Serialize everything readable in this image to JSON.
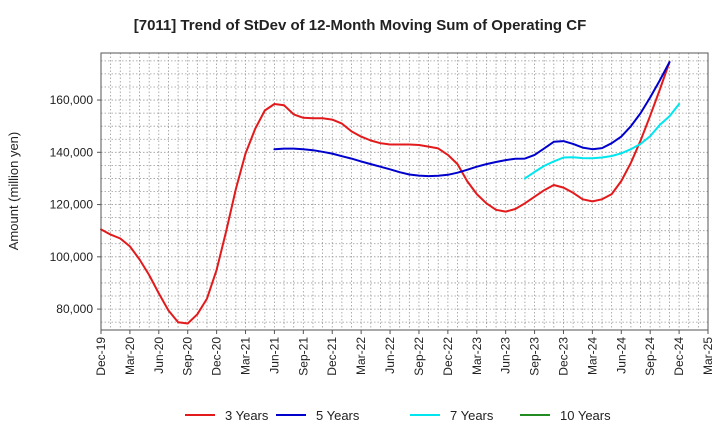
{
  "chart_data": {
    "type": "line",
    "title": "[7011]  Trend of StDev of 12-Month Moving Sum of Operating CF",
    "xlabel": "",
    "ylabel": "Amount (million yen)",
    "ylim": [
      72000,
      178000
    ],
    "yticks": [
      80000,
      100000,
      120000,
      140000,
      160000
    ],
    "ytick_labels": [
      "80,000",
      "100,000",
      "120,000",
      "140,000",
      "160,000"
    ],
    "x_categories": [
      "Dec-19",
      "Mar-20",
      "Jun-20",
      "Sep-20",
      "Dec-20",
      "Mar-21",
      "Jun-21",
      "Sep-21",
      "Dec-21",
      "Mar-22",
      "Jun-22",
      "Sep-22",
      "Dec-22",
      "Mar-23",
      "Jun-23",
      "Sep-23",
      "Dec-23",
      "Mar-24",
      "Jun-24",
      "Sep-24",
      "Dec-24",
      "Mar-25"
    ],
    "grid": true,
    "legend_position": "bottom",
    "series": [
      {
        "name": "3 Years",
        "color": "#e31a1c",
        "points": [
          [
            0,
            110500
          ],
          [
            1,
            108500
          ],
          [
            2,
            107000
          ],
          [
            3,
            104000
          ],
          [
            4,
            99000
          ],
          [
            5,
            93000
          ],
          [
            6,
            86000
          ],
          [
            7,
            79500
          ],
          [
            8,
            75000
          ],
          [
            9,
            74500
          ],
          [
            10,
            78000
          ],
          [
            11,
            84000
          ],
          [
            12,
            95000
          ],
          [
            13,
            110000
          ],
          [
            14,
            126000
          ],
          [
            15,
            139500
          ],
          [
            16,
            149000
          ],
          [
            17,
            156000
          ],
          [
            18,
            158500
          ],
          [
            19,
            158000
          ],
          [
            20,
            154500
          ],
          [
            21,
            153200
          ],
          [
            22,
            153000
          ],
          [
            23,
            153000
          ],
          [
            24,
            152500
          ],
          [
            25,
            151000
          ],
          [
            26,
            148000
          ],
          [
            27,
            146000
          ],
          [
            28,
            144500
          ],
          [
            29,
            143500
          ],
          [
            30,
            143000
          ],
          [
            31,
            143000
          ],
          [
            32,
            143000
          ],
          [
            33,
            142800
          ],
          [
            34,
            142200
          ],
          [
            35,
            141500
          ],
          [
            36,
            139000
          ],
          [
            37,
            135500
          ],
          [
            38,
            129000
          ],
          [
            39,
            124000
          ],
          [
            40,
            120500
          ],
          [
            41,
            118000
          ],
          [
            42,
            117300
          ],
          [
            43,
            118300
          ],
          [
            44,
            120500
          ],
          [
            45,
            123000
          ],
          [
            46,
            125500
          ],
          [
            47,
            127500
          ],
          [
            48,
            126500
          ],
          [
            49,
            124500
          ],
          [
            50,
            122000
          ],
          [
            51,
            121200
          ],
          [
            52,
            122000
          ],
          [
            53,
            124000
          ],
          [
            54,
            129000
          ],
          [
            55,
            136000
          ],
          [
            56,
            144500
          ],
          [
            57,
            154000
          ],
          [
            58,
            164000
          ],
          [
            59,
            174500
          ]
        ]
      },
      {
        "name": "5 Years",
        "color": "#0000cc",
        "points": [
          [
            18,
            141200
          ],
          [
            19,
            141400
          ],
          [
            20,
            141400
          ],
          [
            21,
            141200
          ],
          [
            22,
            140800
          ],
          [
            23,
            140200
          ],
          [
            24,
            139500
          ],
          [
            25,
            138500
          ],
          [
            26,
            137600
          ],
          [
            27,
            136500
          ],
          [
            28,
            135500
          ],
          [
            29,
            134500
          ],
          [
            30,
            133500
          ],
          [
            31,
            132400
          ],
          [
            32,
            131500
          ],
          [
            33,
            131100
          ],
          [
            34,
            130900
          ],
          [
            35,
            131000
          ],
          [
            36,
            131400
          ],
          [
            37,
            132200
          ],
          [
            38,
            133300
          ],
          [
            39,
            134500
          ],
          [
            40,
            135500
          ],
          [
            41,
            136300
          ],
          [
            42,
            137000
          ],
          [
            43,
            137500
          ],
          [
            44,
            137600
          ],
          [
            45,
            139000
          ],
          [
            46,
            141500
          ],
          [
            47,
            144000
          ],
          [
            48,
            144300
          ],
          [
            49,
            143200
          ],
          [
            50,
            141800
          ],
          [
            51,
            141200
          ],
          [
            52,
            141600
          ],
          [
            53,
            143500
          ],
          [
            54,
            146000
          ],
          [
            55,
            150000
          ],
          [
            56,
            155000
          ],
          [
            57,
            161000
          ],
          [
            58,
            167500
          ],
          [
            59,
            174500
          ]
        ]
      },
      {
        "name": "7 Years",
        "color": "#00e5ee",
        "points": [
          [
            44,
            130000
          ],
          [
            45,
            132500
          ],
          [
            46,
            134800
          ],
          [
            47,
            136500
          ],
          [
            48,
            138000
          ],
          [
            49,
            138100
          ],
          [
            50,
            137800
          ],
          [
            51,
            137700
          ],
          [
            52,
            138000
          ],
          [
            53,
            138600
          ],
          [
            54,
            139600
          ],
          [
            55,
            141200
          ],
          [
            56,
            143200
          ],
          [
            57,
            146200
          ],
          [
            58,
            150500
          ],
          [
            59,
            153800
          ],
          [
            60,
            158500
          ]
        ]
      },
      {
        "name": "10 Years",
        "color": "#228b22",
        "points": []
      }
    ]
  }
}
